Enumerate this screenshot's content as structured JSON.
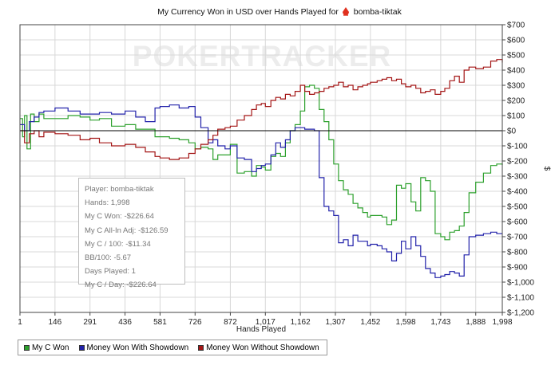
{
  "title": {
    "prefix": "My Currency Won in USD over Hands Played for",
    "player": "bomba-tiktak"
  },
  "watermark": "POKERTRACKER",
  "info_box": {
    "player": "Player: bomba-tiktak",
    "hands": "Hands: 1,998",
    "c_won": "My C Won: -$226.64",
    "allin_adj": "My C All-In Adj: -$126.59",
    "c_100": "My C / 100: -$11.34",
    "bb_100": "BB/100: -5.67",
    "days_played": "Days Played: 1",
    "c_day": "My C / Day: -$226.64"
  },
  "colors": {
    "green": "#2ca02c",
    "blue": "#2222aa",
    "red": "#a31515",
    "zero_line": "#000000",
    "grid": "#d8d8d8"
  },
  "chart_data": {
    "type": "line",
    "title": "My Currency Won in USD over Hands Played for bomba-tiktak",
    "xlabel": "Hands Played",
    "ylabel": "$",
    "xlim": [
      1,
      1998
    ],
    "ylim": [
      -1200,
      700
    ],
    "x_ticks": [
      1,
      146,
      291,
      436,
      581,
      726,
      872,
      1017,
      1162,
      1307,
      1452,
      1598,
      1743,
      1888,
      1998
    ],
    "x_tick_labels": [
      "1",
      "146",
      "291",
      "436",
      "581",
      "726",
      "872",
      "1,017",
      "1,162",
      "1,307",
      "1,452",
      "1,598",
      "1,743",
      "1,888",
      "1,998"
    ],
    "y_ticks": [
      700,
      600,
      500,
      400,
      300,
      200,
      100,
      0,
      -100,
      -200,
      -300,
      -400,
      -500,
      -600,
      -700,
      -800,
      -900,
      -1000,
      -1100,
      -1200
    ],
    "y_tick_labels": [
      "$700",
      "$600",
      "$500",
      "$400",
      "$300",
      "$200",
      "$100",
      "$0",
      "$-100",
      "$-200",
      "$-300",
      "$-400",
      "$-500",
      "$-600",
      "$-700",
      "$-800",
      "$-900",
      "$-1,000",
      "$-1,100",
      "$-1,200"
    ],
    "grid": true,
    "legend_position": "bottom-left",
    "series": [
      {
        "name": "My C Won",
        "color": "#2ca02c",
        "x": [
          1,
          12,
          20,
          30,
          45,
          60,
          80,
          100,
          146,
          200,
          250,
          291,
          330,
          380,
          436,
          480,
          520,
          560,
          581,
          620,
          660,
          700,
          726,
          750,
          780,
          800,
          820,
          850,
          872,
          900,
          930,
          960,
          980,
          1000,
          1017,
          1040,
          1060,
          1080,
          1100,
          1120,
          1140,
          1162,
          1180,
          1200,
          1220,
          1240,
          1260,
          1280,
          1300,
          1320,
          1340,
          1360,
          1380,
          1400,
          1420,
          1440,
          1452,
          1480,
          1500,
          1520,
          1540,
          1560,
          1580,
          1598,
          1620,
          1640,
          1660,
          1680,
          1700,
          1720,
          1743,
          1760,
          1780,
          1800,
          1820,
          1840,
          1860,
          1888,
          1920,
          1950,
          1975,
          1998
        ],
        "y": [
          80,
          -40,
          100,
          -120,
          110,
          60,
          110,
          80,
          80,
          100,
          90,
          70,
          80,
          30,
          40,
          10,
          10,
          -40,
          -40,
          -50,
          -60,
          -80,
          -120,
          -110,
          -120,
          -190,
          -160,
          -160,
          -90,
          -280,
          -270,
          -300,
          -230,
          -240,
          -260,
          -170,
          -150,
          -170,
          -80,
          0,
          40,
          130,
          290,
          300,
          280,
          140,
          60,
          -60,
          -220,
          -330,
          -390,
          -420,
          -480,
          -510,
          -540,
          -570,
          -560,
          -560,
          -570,
          -620,
          -590,
          -360,
          -380,
          -350,
          -470,
          -530,
          -310,
          -330,
          -400,
          -680,
          -700,
          -720,
          -670,
          -660,
          -630,
          -540,
          -410,
          -340,
          -280,
          -230,
          -220,
          -226.64
        ]
      },
      {
        "name": "Money Won With Showdown",
        "color": "#2222aa",
        "x": [
          1,
          20,
          40,
          60,
          80,
          100,
          146,
          200,
          250,
          291,
          330,
          380,
          436,
          480,
          520,
          560,
          581,
          620,
          660,
          700,
          726,
          750,
          780,
          800,
          820,
          850,
          872,
          900,
          930,
          960,
          980,
          1000,
          1017,
          1040,
          1060,
          1080,
          1100,
          1120,
          1140,
          1162,
          1180,
          1200,
          1220,
          1240,
          1260,
          1280,
          1300,
          1320,
          1340,
          1360,
          1380,
          1400,
          1420,
          1440,
          1452,
          1480,
          1500,
          1520,
          1540,
          1560,
          1580,
          1598,
          1620,
          1640,
          1660,
          1680,
          1700,
          1720,
          1743,
          1760,
          1780,
          1800,
          1820,
          1840,
          1860,
          1888,
          1920,
          1950,
          1975,
          1998
        ],
        "y": [
          40,
          0,
          60,
          90,
          120,
          130,
          150,
          130,
          110,
          110,
          120,
          110,
          130,
          90,
          60,
          150,
          160,
          170,
          150,
          160,
          90,
          20,
          -80,
          -60,
          -100,
          -120,
          -100,
          -180,
          -190,
          -270,
          -250,
          -230,
          -220,
          -160,
          -80,
          -110,
          -60,
          0,
          20,
          20,
          10,
          10,
          0,
          -310,
          -500,
          -530,
          -560,
          -740,
          -720,
          -760,
          -690,
          -730,
          -730,
          -760,
          -750,
          -760,
          -780,
          -800,
          -860,
          -810,
          -730,
          -780,
          -700,
          -760,
          -830,
          -910,
          -940,
          -970,
          -960,
          -950,
          -930,
          -940,
          -960,
          -820,
          -700,
          -690,
          -680,
          -670,
          -680,
          -680
        ]
      },
      {
        "name": "Money Won Without Showdown",
        "color": "#a31515",
        "x": [
          1,
          20,
          40,
          60,
          80,
          100,
          146,
          200,
          250,
          291,
          330,
          380,
          436,
          480,
          520,
          560,
          581,
          620,
          660,
          700,
          726,
          750,
          780,
          800,
          820,
          850,
          872,
          900,
          930,
          960,
          980,
          1000,
          1017,
          1040,
          1060,
          1080,
          1100,
          1120,
          1140,
          1162,
          1180,
          1200,
          1220,
          1240,
          1260,
          1280,
          1300,
          1320,
          1340,
          1360,
          1380,
          1400,
          1420,
          1440,
          1452,
          1480,
          1500,
          1520,
          1540,
          1560,
          1580,
          1598,
          1620,
          1640,
          1660,
          1680,
          1700,
          1720,
          1743,
          1760,
          1780,
          1800,
          1820,
          1840,
          1860,
          1888,
          1920,
          1950,
          1975,
          1998
        ],
        "y": [
          0,
          -80,
          -20,
          0,
          -40,
          -10,
          -20,
          -30,
          -60,
          -50,
          -80,
          -100,
          -90,
          -110,
          -140,
          -170,
          -180,
          -190,
          -180,
          -150,
          -120,
          -90,
          -60,
          -30,
          10,
          20,
          30,
          70,
          100,
          140,
          170,
          180,
          160,
          200,
          220,
          210,
          240,
          230,
          260,
          300,
          260,
          240,
          250,
          260,
          280,
          290,
          300,
          320,
          290,
          300,
          270,
          290,
          300,
          310,
          320,
          330,
          340,
          350,
          330,
          340,
          310,
          290,
          300,
          280,
          250,
          260,
          270,
          240,
          260,
          280,
          330,
          360,
          320,
          400,
          420,
          410,
          420,
          460,
          470,
          450
        ]
      }
    ]
  },
  "legend": {
    "items": [
      {
        "label": "My C Won",
        "color": "#2ca02c"
      },
      {
        "label": "Money Won With Showdown",
        "color": "#2222aa"
      },
      {
        "label": "Money Won Without Showdown",
        "color": "#a31515"
      }
    ]
  }
}
